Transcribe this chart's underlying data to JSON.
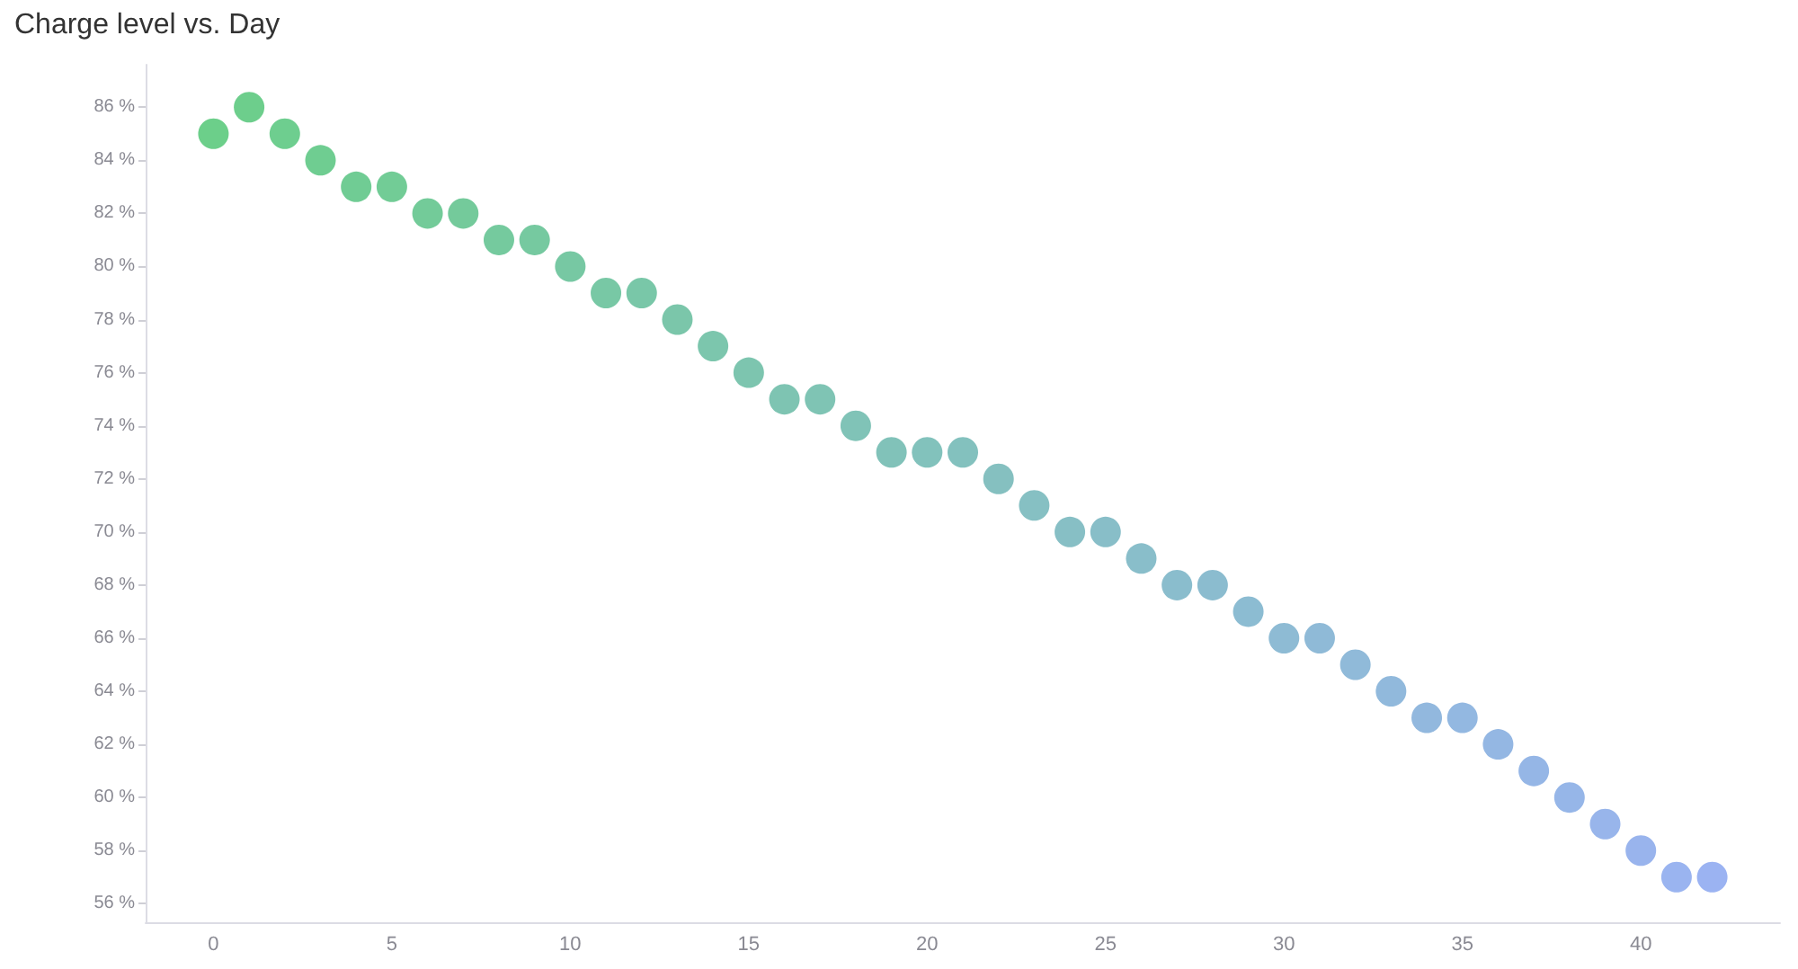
{
  "chart_data": {
    "type": "scatter",
    "title": "Charge level vs. Day",
    "x": [
      0,
      1,
      2,
      3,
      4,
      5,
      6,
      7,
      8,
      9,
      10,
      11,
      12,
      13,
      14,
      15,
      16,
      17,
      18,
      19,
      20,
      21,
      22,
      23,
      24,
      25,
      26,
      27,
      28,
      29,
      30,
      31,
      32,
      33,
      34,
      35,
      36,
      37,
      38,
      39,
      40,
      41,
      42
    ],
    "values": [
      85,
      86,
      85,
      84,
      83,
      83,
      82,
      82,
      81,
      81,
      80,
      79,
      79,
      78,
      77,
      76,
      75,
      75,
      74,
      73,
      73,
      73,
      72,
      71,
      70,
      70,
      69,
      68,
      68,
      67,
      66,
      66,
      65,
      64,
      63,
      63,
      62,
      61,
      60,
      59,
      58,
      57,
      57
    ],
    "colors": [
      "#6ccf8a",
      "#6dce8c",
      "#6ece8f",
      "#6fcd91",
      "#70cc94",
      "#72cc96",
      "#73cb99",
      "#74ca9b",
      "#75ca9e",
      "#76c9a0",
      "#77c8a3",
      "#78c8a5",
      "#79c7a8",
      "#7bc6aa",
      "#7cc6ad",
      "#7dc5af",
      "#7ec4b2",
      "#7fc4b4",
      "#80c3b7",
      "#81c2b9",
      "#82c2bc",
      "#83c1be",
      "#85c0c0",
      "#86c0c3",
      "#87bfc5",
      "#88bec8",
      "#89beca",
      "#8abdcd",
      "#8bbccf",
      "#8cbcd2",
      "#8ebbd4",
      "#8fbad7",
      "#90bad9",
      "#91b9dc",
      "#92b8de",
      "#93b8e1",
      "#94b7e3",
      "#95b6e6",
      "#96b6e8",
      "#98b5eb",
      "#99b4ed",
      "#9ab4f0",
      "#9bb3f2"
    ],
    "marker": "circle",
    "xlim": [
      -1.9,
      43.9
    ],
    "xticks": [
      0,
      5,
      10,
      15,
      20,
      25,
      30,
      35,
      40
    ],
    "ylim": [
      55.3,
      87.6
    ],
    "yticks": [
      {
        "value": 56,
        "label": "56 %"
      },
      {
        "value": 58,
        "label": "58 %"
      },
      {
        "value": 60,
        "label": "60 %"
      },
      {
        "value": 62,
        "label": "62 %"
      },
      {
        "value": 64,
        "label": "64 %"
      },
      {
        "value": 66,
        "label": "66 %"
      },
      {
        "value": 68,
        "label": "68 %"
      },
      {
        "value": 70,
        "label": "70 %"
      },
      {
        "value": 72,
        "label": "72 %"
      },
      {
        "value": 74,
        "label": "74 %"
      },
      {
        "value": 76,
        "label": "76 %"
      },
      {
        "value": 78,
        "label": "78 %"
      },
      {
        "value": 80,
        "label": "80 %"
      },
      {
        "value": 82,
        "label": "82 %"
      },
      {
        "value": 84,
        "label": "84 %"
      },
      {
        "value": 86,
        "label": "86 %"
      }
    ]
  }
}
